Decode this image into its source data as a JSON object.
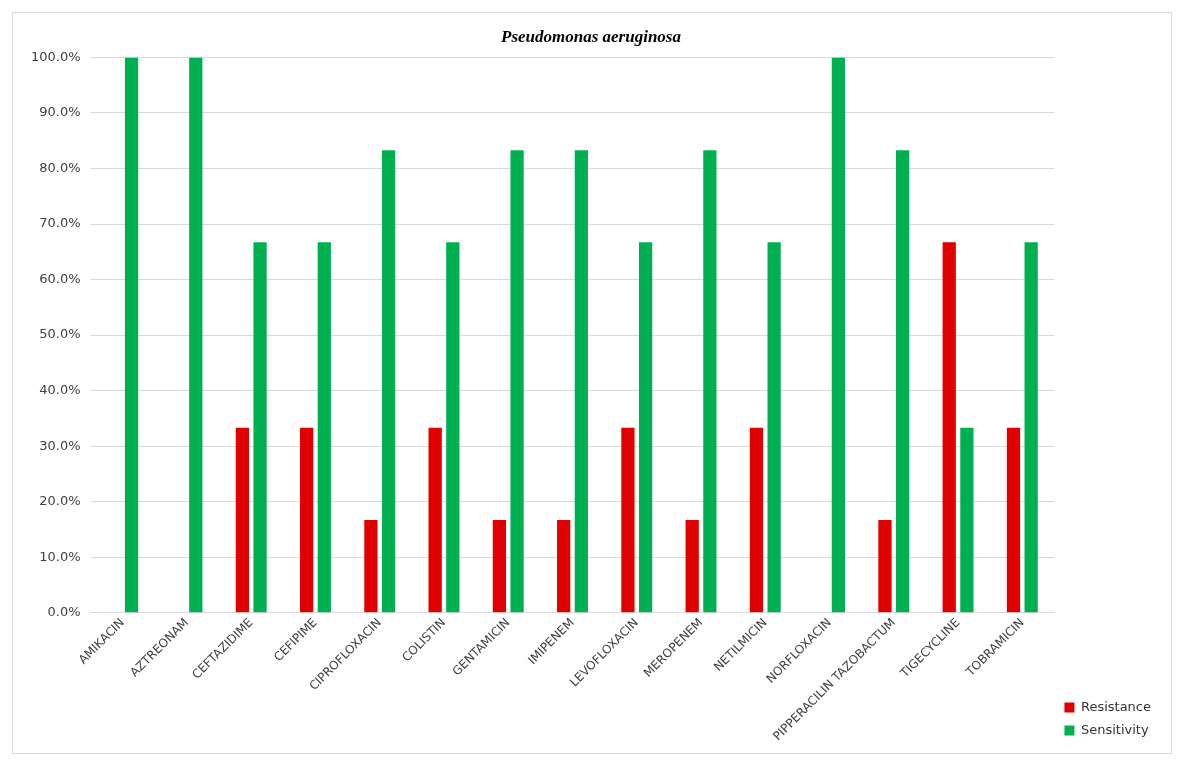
{
  "chart_data": {
    "type": "bar",
    "title": "Pseudomonas aeruginosa",
    "categories": [
      "AMIKACIN",
      "AZTREONAM",
      "CEFTAZIDIME",
      "CEFIPIME",
      "CIPROFLOXACIN",
      "COLISTIN",
      "GENTAMICIN",
      "IMIPENEM",
      "LEVOFLOXACIN",
      "MEROPENEM",
      "NETILMICIN",
      "NORFLOXACIN",
      "PIPPERACILIN TAZOBACTUM",
      "TIGECYCLINE",
      "TOBRAMICIN"
    ],
    "series": [
      {
        "name": "Resistance",
        "color": "#e00000",
        "values": [
          0,
          0,
          33.3,
          33.3,
          16.7,
          33.3,
          16.7,
          16.7,
          33.3,
          16.7,
          33.3,
          0,
          16.7,
          66.7,
          33.3
        ]
      },
      {
        "name": "Sensitivity",
        "color": "#00b050",
        "values": [
          100,
          100,
          66.7,
          66.7,
          83.3,
          66.7,
          83.3,
          83.3,
          66.7,
          83.3,
          66.7,
          100,
          83.3,
          33.3,
          66.7
        ]
      }
    ],
    "ylim": [
      0,
      100
    ],
    "yticks": [
      {
        "value": 0,
        "label": "0.0%"
      },
      {
        "value": 10,
        "label": "10.0%"
      },
      {
        "value": 20,
        "label": "20.0%"
      },
      {
        "value": 30,
        "label": "30.0%"
      },
      {
        "value": 40,
        "label": "40.0%"
      },
      {
        "value": 50,
        "label": "50.0%"
      },
      {
        "value": 60,
        "label": "60.0%"
      },
      {
        "value": 70,
        "label": "70.0%"
      },
      {
        "value": 80,
        "label": "80.0%"
      },
      {
        "value": 90,
        "label": "90.0%"
      },
      {
        "value": 100,
        "label": "100.0%"
      }
    ],
    "grid": "y",
    "legend": "bottom right"
  }
}
